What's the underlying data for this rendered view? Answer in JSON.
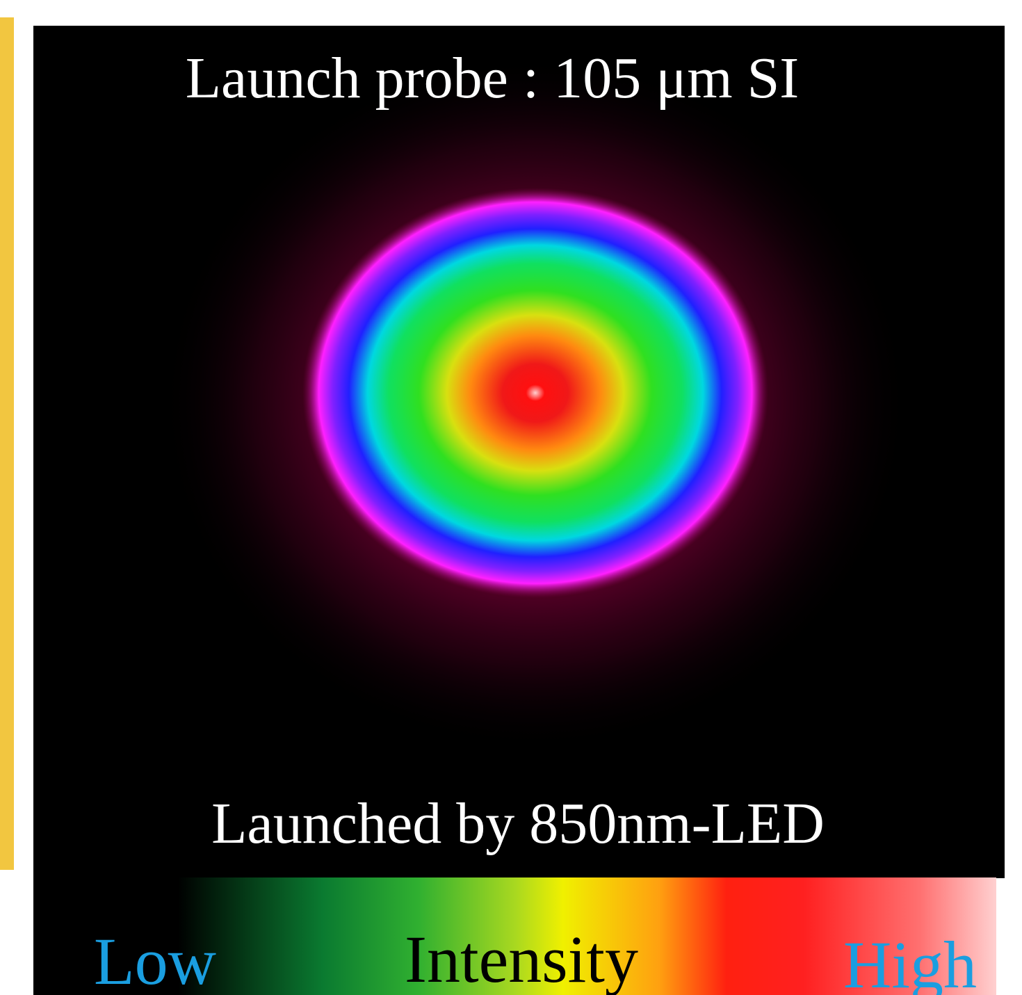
{
  "image": {
    "title": "Launch probe : 105 μm SI",
    "caption": "Launched by 850nm-LED"
  },
  "colorbar": {
    "low_label": "Low",
    "title": "Intensity",
    "high_label": "High"
  }
}
